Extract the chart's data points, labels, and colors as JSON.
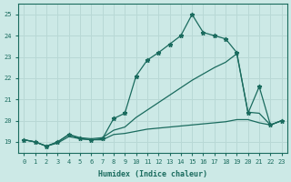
{
  "xlabel": "Humidex (Indice chaleur)",
  "bg_color": "#cce9e6",
  "line_color": "#1a6b5e",
  "grid_color": "#b8d8d5",
  "xlim": [
    -0.5,
    23.5
  ],
  "ylim": [
    18.5,
    25.5
  ],
  "xticks": [
    0,
    1,
    2,
    3,
    4,
    5,
    6,
    7,
    8,
    9,
    10,
    11,
    12,
    13,
    14,
    15,
    16,
    17,
    18,
    19,
    20,
    21,
    22,
    23
  ],
  "yticks": [
    19,
    20,
    21,
    22,
    23,
    24,
    25
  ],
  "series1_markers": true,
  "series2_markers": false,
  "series3_markers": false,
  "series1": [
    19.1,
    19.0,
    18.8,
    19.0,
    19.35,
    19.15,
    19.1,
    19.15,
    20.1,
    20.35,
    22.1,
    22.85,
    23.2,
    23.6,
    24.0,
    25.0,
    24.15,
    24.0,
    23.85,
    23.2,
    20.35,
    21.6,
    19.8,
    20.0
  ],
  "series2": [
    19.1,
    19.0,
    18.8,
    19.0,
    19.35,
    19.2,
    19.15,
    19.2,
    19.55,
    19.7,
    20.15,
    20.5,
    20.85,
    21.2,
    21.55,
    21.9,
    22.2,
    22.5,
    22.75,
    23.15,
    20.4,
    20.35,
    19.8,
    20.0
  ],
  "series3": [
    19.1,
    19.0,
    18.8,
    18.95,
    19.25,
    19.15,
    19.1,
    19.1,
    19.35,
    19.4,
    19.5,
    19.6,
    19.65,
    19.7,
    19.75,
    19.8,
    19.85,
    19.9,
    19.95,
    20.05,
    20.05,
    19.9,
    19.8,
    20.0
  ]
}
